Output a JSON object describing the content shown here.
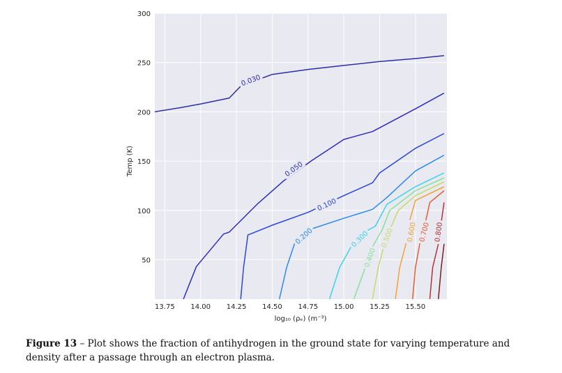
{
  "chart_data": {
    "type": "contour",
    "xlabel": "log₁₀ (ρₑ) (m⁻³)",
    "ylabel": "Temp (K)",
    "xlim": [
      13.68,
      15.72
    ],
    "ylim": [
      10,
      300
    ],
    "x_ticks": [
      "13.75",
      "14.00",
      "14.25",
      "14.50",
      "14.75",
      "15.00",
      "15.25",
      "15.50"
    ],
    "y_ticks": [
      "50",
      "100",
      "150",
      "200",
      "250",
      "300"
    ],
    "contours": [
      {
        "label": "0.030",
        "color": "#2d2da8",
        "points": [
          [
            13.68,
            200
          ],
          [
            13.85,
            204
          ],
          [
            14.0,
            208
          ],
          [
            14.2,
            214
          ],
          [
            14.28,
            226
          ],
          [
            14.5,
            238
          ],
          [
            14.75,
            243
          ],
          [
            15.0,
            247
          ],
          [
            15.25,
            251
          ],
          [
            15.5,
            254
          ],
          [
            15.7,
            257
          ]
        ],
        "label_at": [
          14.35,
          232
        ]
      },
      {
        "label": "0.050",
        "color": "#2c2cc4",
        "points": [
          [
            13.88,
            10
          ],
          [
            13.97,
            43
          ],
          [
            14.16,
            76
          ],
          [
            14.2,
            78
          ],
          [
            14.4,
            107
          ],
          [
            14.58,
            130
          ],
          [
            14.77,
            150
          ],
          [
            15.0,
            172
          ],
          [
            15.2,
            180
          ],
          [
            15.5,
            203
          ],
          [
            15.7,
            219
          ]
        ],
        "label_at": [
          14.65,
          142
        ]
      },
      {
        "label": "0.100",
        "color": "#2846de",
        "points": [
          [
            14.28,
            10
          ],
          [
            14.3,
            42
          ],
          [
            14.33,
            75
          ],
          [
            14.5,
            85
          ],
          [
            14.75,
            98
          ],
          [
            15.0,
            115
          ],
          [
            15.2,
            128
          ],
          [
            15.25,
            138
          ],
          [
            15.5,
            163
          ],
          [
            15.7,
            178
          ]
        ],
        "label_at": [
          14.88,
          106
        ]
      },
      {
        "label": "0.200",
        "color": "#2a8aee",
        "points": [
          [
            14.55,
            10
          ],
          [
            14.6,
            42
          ],
          [
            14.66,
            68
          ],
          [
            14.75,
            80
          ],
          [
            15.0,
            92
          ],
          [
            15.2,
            101
          ],
          [
            15.3,
            113
          ],
          [
            15.5,
            140
          ],
          [
            15.7,
            156
          ]
        ],
        "label_at": [
          14.72,
          74
        ]
      },
      {
        "label": "0.300",
        "color": "#3ad2ea",
        "points": [
          [
            14.9,
            10
          ],
          [
            14.97,
            42
          ],
          [
            15.05,
            63
          ],
          [
            15.17,
            80
          ],
          [
            15.22,
            84
          ],
          [
            15.3,
            106
          ],
          [
            15.5,
            124
          ],
          [
            15.7,
            138
          ]
        ],
        "label_at": [
          15.11,
          71
        ]
      },
      {
        "label": "0.400",
        "color": "#86e29a",
        "points": [
          [
            15.07,
            10
          ],
          [
            15.15,
            42
          ],
          [
            15.2,
            63
          ],
          [
            15.27,
            81
          ],
          [
            15.32,
            100
          ],
          [
            15.5,
            120
          ],
          [
            15.7,
            133
          ]
        ],
        "label_at": [
          15.18,
          52
        ]
      },
      {
        "label": "0.500",
        "color": "#c0dc6a",
        "points": [
          [
            15.2,
            10
          ],
          [
            15.24,
            42
          ],
          [
            15.28,
            64
          ],
          [
            15.32,
            80
          ],
          [
            15.38,
            100
          ],
          [
            15.5,
            115
          ],
          [
            15.7,
            129
          ]
        ],
        "label_at": [
          15.3,
          72
        ]
      },
      {
        "label": "0.600",
        "color": "#f0a236",
        "points": [
          [
            15.36,
            10
          ],
          [
            15.39,
            42
          ],
          [
            15.43,
            64
          ],
          [
            15.46,
            90
          ],
          [
            15.5,
            110
          ],
          [
            15.7,
            124
          ]
        ],
        "label_at": [
          15.47,
          78
        ]
      },
      {
        "label": "0.700",
        "color": "#e85a30",
        "points": [
          [
            15.48,
            10
          ],
          [
            15.5,
            42
          ],
          [
            15.53,
            66
          ],
          [
            15.57,
            88
          ],
          [
            15.6,
            108
          ],
          [
            15.7,
            120
          ]
        ],
        "label_at": [
          15.56,
          78
        ]
      },
      {
        "label": "0.800",
        "color": "#b43232",
        "points": [
          [
            15.6,
            10
          ],
          [
            15.62,
            42
          ],
          [
            15.66,
            66
          ],
          [
            15.68,
            88
          ],
          [
            15.7,
            108
          ]
        ],
        "label_at": [
          15.66,
          78
        ]
      },
      {
        "label": "",
        "color": "#7a1e1e",
        "points": [
          [
            15.66,
            10
          ],
          [
            15.68,
            42
          ],
          [
            15.7,
            66
          ]
        ],
        "label_at": null
      }
    ]
  },
  "caption": {
    "figure_label": "Figure 13",
    "separator": " – ",
    "text": "Plot shows the fraction of antihydrogen in the ground state for varying temperature and density after a passage through an electron plasma."
  }
}
